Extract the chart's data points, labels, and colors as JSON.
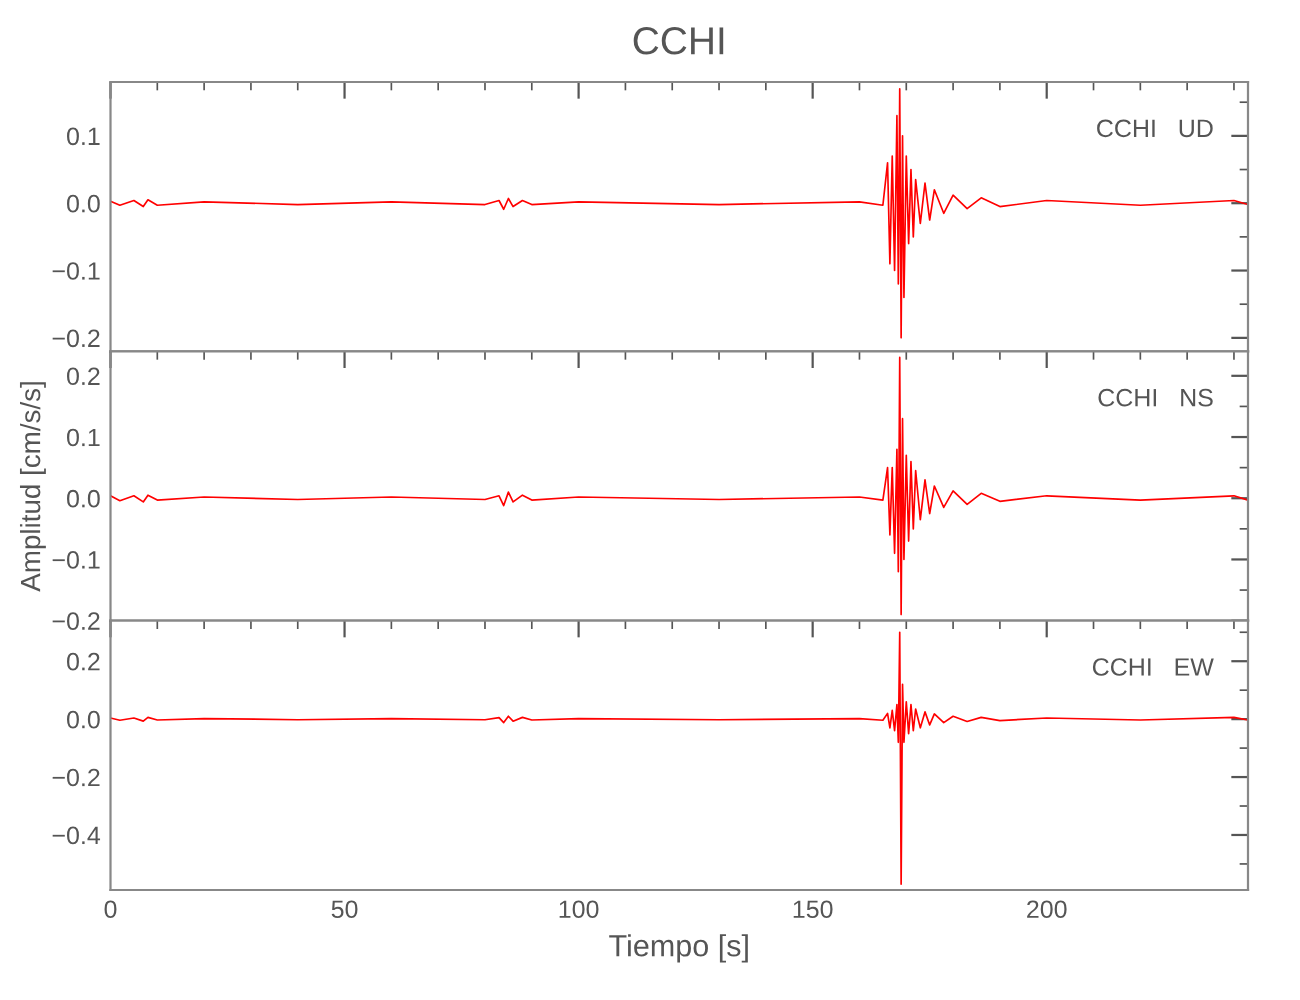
{
  "chart_data": [
    {
      "type": "line",
      "title": "CCHI",
      "annotations": [
        "CCHI   UD"
      ],
      "xlim": [
        0,
        243
      ],
      "xticks": [
        0,
        50,
        100,
        150,
        200
      ],
      "ylim": [
        -0.22,
        0.18
      ],
      "yticks": [
        {
          "value": -0.2,
          "label": "−0.2"
        },
        {
          "value": -0.1,
          "label": "−0.1"
        },
        {
          "value": 0.0,
          "label": "0.0"
        },
        {
          "value": 0.1,
          "label": "0.1"
        }
      ],
      "tick_labels": "y",
      "grid": false,
      "legend": false,
      "series": [
        {
          "color": "#ff0000",
          "x": [
            0,
            2,
            5,
            7,
            8,
            10,
            20,
            40,
            60,
            80,
            83,
            84,
            85,
            86,
            88,
            90,
            100,
            130,
            160,
            165,
            166,
            166.5,
            167,
            167.5,
            168,
            168.3,
            168.6,
            168.9,
            169.2,
            169.5,
            170,
            170.5,
            171,
            171.5,
            172,
            173,
            174,
            175,
            176,
            178,
            180,
            183,
            186,
            190,
            200,
            220,
            240,
            243
          ],
          "values": [
            0.003,
            -0.003,
            0.004,
            -0.005,
            0.005,
            -0.003,
            0.002,
            -0.002,
            0.002,
            -0.002,
            0.004,
            -0.009,
            0.007,
            -0.005,
            0.004,
            -0.002,
            0.002,
            -0.002,
            0.002,
            -0.003,
            0.06,
            -0.09,
            0.07,
            -0.1,
            0.13,
            -0.12,
            0.17,
            -0.2,
            0.1,
            -0.14,
            0.07,
            -0.06,
            0.05,
            -0.05,
            0.035,
            -0.03,
            0.03,
            -0.025,
            0.02,
            -0.015,
            0.012,
            -0.008,
            0.008,
            -0.005,
            0.004,
            -0.003,
            0.004,
            -0.002
          ]
        }
      ]
    },
    {
      "type": "line",
      "ylabel": "Amplitud [cm/s/s]",
      "annotations": [
        "CCHI   NS"
      ],
      "xlim": [
        0,
        243
      ],
      "xticks": [
        0,
        50,
        100,
        150,
        200
      ],
      "ylim": [
        -0.2,
        0.24
      ],
      "yticks": [
        {
          "value": -0.2,
          "label": "−0.2"
        },
        {
          "value": -0.1,
          "label": "−0.1"
        },
        {
          "value": 0.0,
          "label": "0.0"
        },
        {
          "value": 0.1,
          "label": "0.1"
        },
        {
          "value": 0.2,
          "label": "0.2"
        }
      ],
      "tick_labels": "y",
      "grid": false,
      "legend": false,
      "series": [
        {
          "color": "#ff0000",
          "x": [
            0,
            2,
            5,
            7,
            8,
            10,
            20,
            40,
            60,
            80,
            83,
            84,
            85,
            86,
            88,
            90,
            100,
            130,
            160,
            165,
            166,
            166.5,
            167,
            167.5,
            168,
            168.3,
            168.6,
            168.9,
            169.2,
            169.5,
            170,
            170.5,
            171,
            171.5,
            172,
            173,
            174,
            175,
            176,
            178,
            180,
            183,
            186,
            190,
            200,
            220,
            240,
            243
          ],
          "values": [
            0.004,
            -0.004,
            0.004,
            -0.006,
            0.005,
            -0.003,
            0.002,
            -0.002,
            0.002,
            -0.002,
            0.004,
            -0.012,
            0.01,
            -0.006,
            0.005,
            -0.003,
            0.002,
            -0.002,
            0.002,
            -0.003,
            0.05,
            -0.06,
            0.05,
            -0.09,
            0.08,
            -0.12,
            0.23,
            -0.19,
            0.13,
            -0.1,
            0.07,
            -0.07,
            0.06,
            -0.05,
            0.045,
            -0.035,
            0.03,
            -0.025,
            0.02,
            -0.015,
            0.012,
            -0.01,
            0.008,
            -0.005,
            0.004,
            -0.003,
            0.004,
            -0.003
          ]
        }
      ]
    },
    {
      "type": "line",
      "xlabel": "Tiempo [s]",
      "annotations": [
        "CCHI   EW"
      ],
      "xlim": [
        0,
        243
      ],
      "xticks": [
        0,
        50,
        100,
        150,
        200
      ],
      "ylim": [
        -0.59,
        0.34
      ],
      "yticks": [
        {
          "value": -0.4,
          "label": "−0.4"
        },
        {
          "value": -0.2,
          "label": "−0.2"
        },
        {
          "value": 0.0,
          "label": "0.0"
        },
        {
          "value": 0.2,
          "label": "0.2"
        }
      ],
      "grid": false,
      "legend": false,
      "series": [
        {
          "color": "#ff0000",
          "x": [
            0,
            2,
            5,
            7,
            8,
            10,
            20,
            40,
            60,
            80,
            83,
            84,
            85,
            86,
            88,
            90,
            100,
            130,
            160,
            165,
            166,
            166.5,
            167,
            167.5,
            168,
            168.3,
            168.6,
            168.9,
            169.2,
            169.5,
            170,
            170.5,
            171,
            171.5,
            172,
            173,
            174,
            175,
            176,
            178,
            180,
            183,
            186,
            190,
            200,
            220,
            240,
            243
          ],
          "values": [
            0.004,
            -0.004,
            0.004,
            -0.007,
            0.006,
            -0.003,
            0.002,
            -0.002,
            0.002,
            -0.002,
            0.005,
            -0.012,
            0.01,
            -0.007,
            0.006,
            -0.003,
            0.002,
            -0.002,
            0.002,
            -0.004,
            0.02,
            -0.03,
            0.03,
            -0.04,
            0.05,
            -0.08,
            0.3,
            -0.57,
            0.12,
            -0.08,
            0.06,
            -0.05,
            0.05,
            -0.04,
            0.035,
            -0.03,
            0.025,
            -0.02,
            0.018,
            -0.012,
            0.01,
            -0.008,
            0.006,
            -0.005,
            0.004,
            -0.003,
            0.006,
            -0.003
          ]
        }
      ]
    }
  ]
}
